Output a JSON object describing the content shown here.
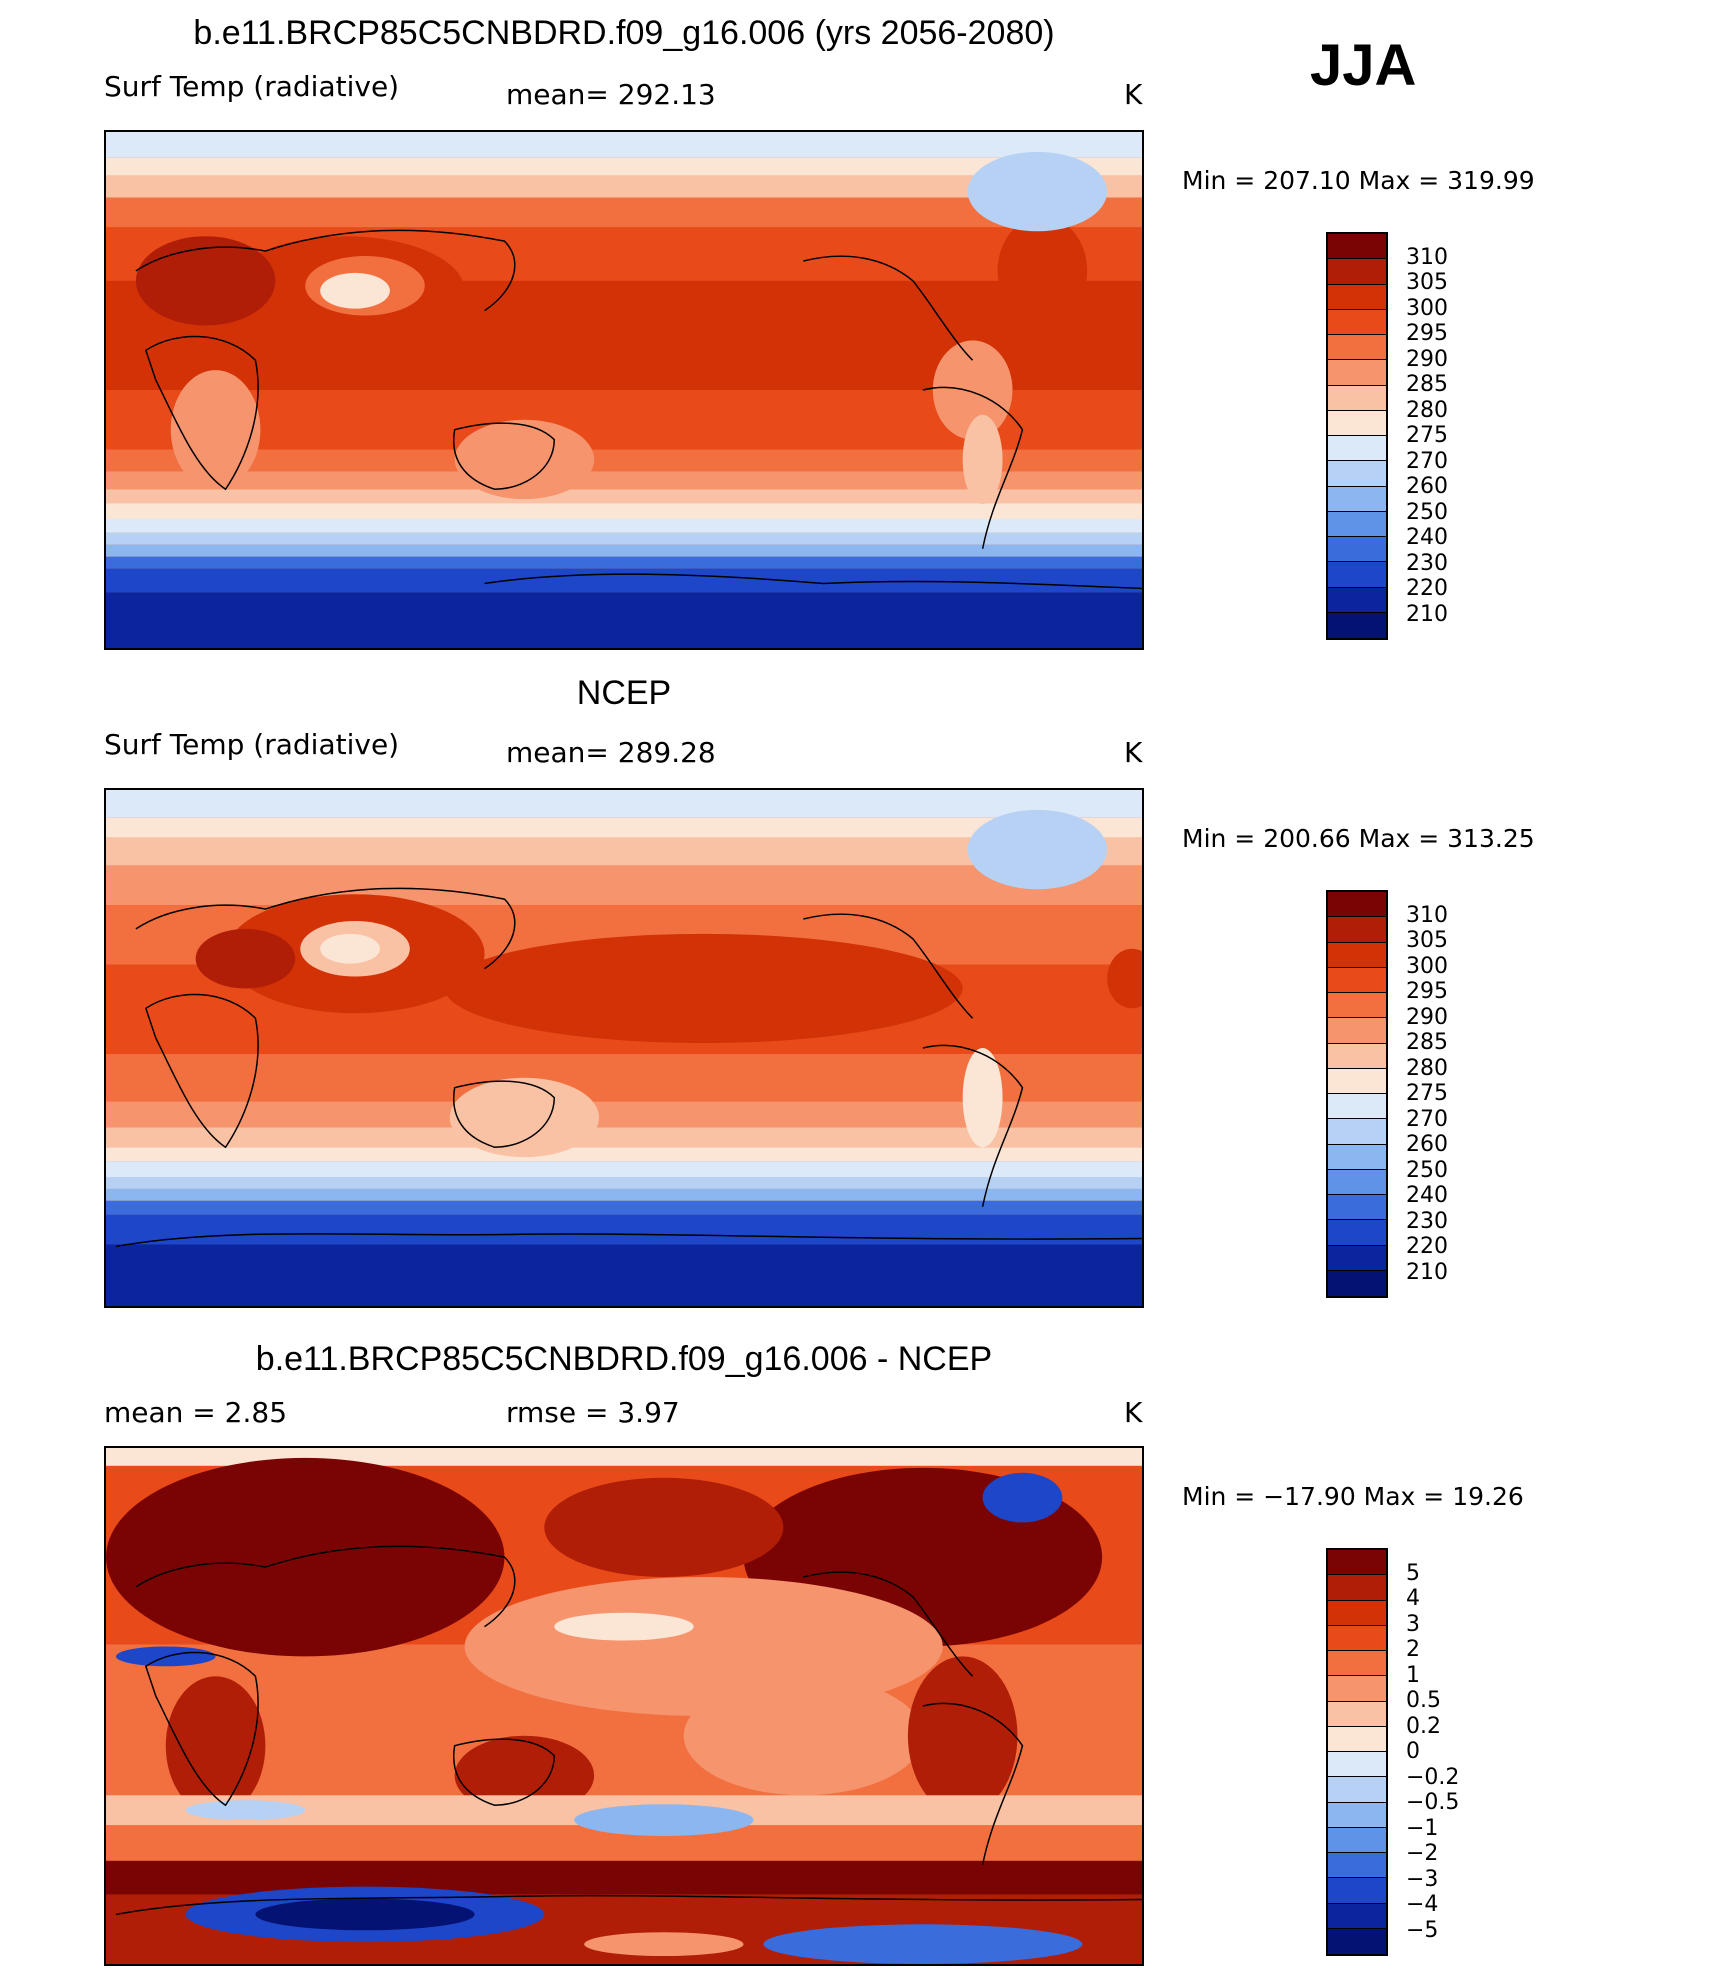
{
  "season": "JJA",
  "units": "K",
  "panels": [
    {
      "title": "b.e11.BRCP85C5CNBDRD.f09_g16.006 (yrs 2056-2080)",
      "variable": "Surf Temp (radiative)",
      "stat_text": "mean=  292.13",
      "units": "K",
      "minmax": "Min  =  207.10  Max  =  319.99",
      "colorbar_labels": [
        "310",
        "305",
        "300",
        "295",
        "290",
        "285",
        "280",
        "275",
        "270",
        "260",
        "250",
        "240",
        "230",
        "220",
        "210"
      ],
      "colors": [
        "#7a0403",
        "#b01e08",
        "#d33207",
        "#e84a1a",
        "#f2703f",
        "#f6946d",
        "#f9c2a4",
        "#fbe6d6",
        "#dbe9f8",
        "#b6d1f4",
        "#8bb6f0",
        "#5f93e7",
        "#3a6cdc",
        "#1d46c8",
        "#0b259f",
        "#031273"
      ]
    },
    {
      "title": "NCEP",
      "variable": "Surf Temp (radiative)",
      "stat_text": "mean=  289.28",
      "units": "K",
      "minmax": "Min  =  200.66  Max  =  313.25",
      "colorbar_labels": [
        "310",
        "305",
        "300",
        "295",
        "290",
        "285",
        "280",
        "275",
        "270",
        "260",
        "250",
        "240",
        "230",
        "220",
        "210"
      ],
      "colors": [
        "#7a0403",
        "#b01e08",
        "#d33207",
        "#e84a1a",
        "#f2703f",
        "#f6946d",
        "#f9c2a4",
        "#fbe6d6",
        "#dbe9f8",
        "#b6d1f4",
        "#8bb6f0",
        "#5f93e7",
        "#3a6cdc",
        "#1d46c8",
        "#0b259f",
        "#031273"
      ]
    },
    {
      "title": "b.e11.BRCP85C5CNBDRD.f09_g16.006 - NCEP",
      "variable": "mean =      2.85",
      "stat_text": "rmse =      3.97",
      "units": "K",
      "minmax": "Min  = −17.90  Max  =     19.26",
      "colorbar_labels": [
        "5",
        "4",
        "3",
        "2",
        "1",
        "0.5",
        "0.2",
        "0",
        "−0.2",
        "−0.5",
        "−1",
        "−2",
        "−3",
        "−4",
        "−5"
      ],
      "colors": [
        "#7a0403",
        "#b01e08",
        "#d33207",
        "#e84a1a",
        "#f2703f",
        "#f6946d",
        "#f9c2a4",
        "#fbe6d6",
        "#dbe9f8",
        "#b6d1f4",
        "#8bb6f0",
        "#5f93e7",
        "#3a6cdc",
        "#1d46c8",
        "#0b259f",
        "#031273"
      ]
    }
  ]
}
